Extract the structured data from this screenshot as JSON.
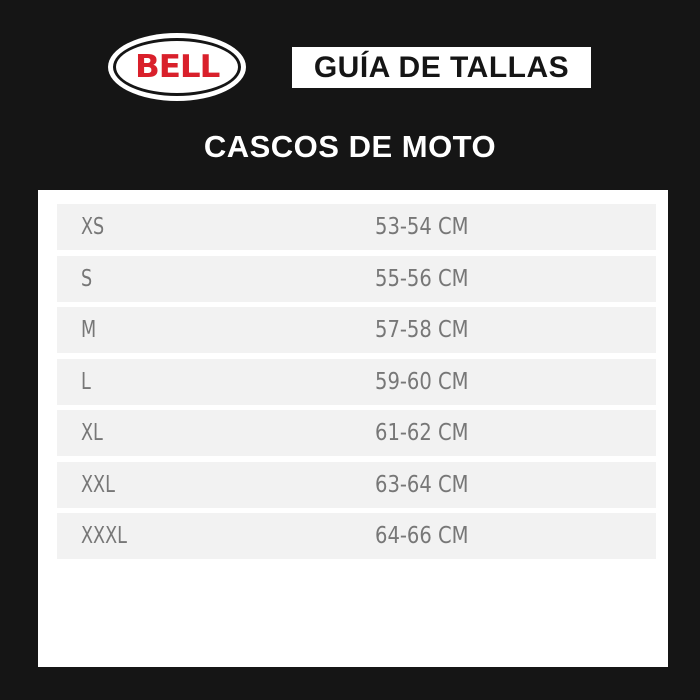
{
  "logo": {
    "text": "BELL",
    "color": "#d9202b"
  },
  "header": {
    "title": "GUÍA DE TALLAS",
    "subtitle": "CASCOS DE MOTO"
  },
  "sizes": [
    {
      "size": "XS",
      "range": "53-54 CM"
    },
    {
      "size": "S",
      "range": "55-56 CM"
    },
    {
      "size": "M",
      "range": "57-58 CM"
    },
    {
      "size": "L",
      "range": "59-60 CM"
    },
    {
      "size": "XL",
      "range": "61-62 CM"
    },
    {
      "size": "XXL",
      "range": "63-64 CM"
    },
    {
      "size": "XXXL",
      "range": "64-66 CM"
    }
  ]
}
